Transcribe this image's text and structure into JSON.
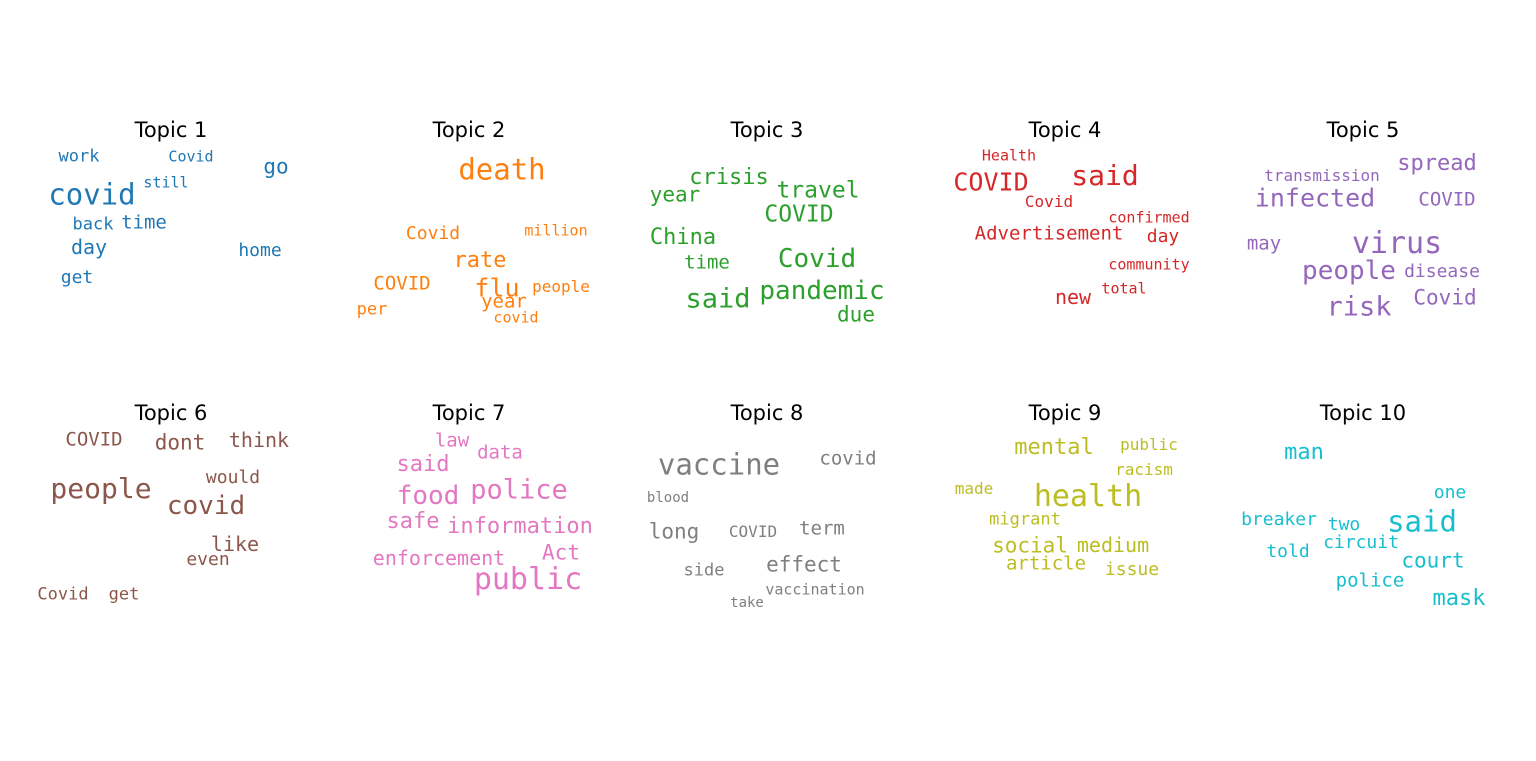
{
  "panels": [
    {
      "title": "Topic 1",
      "color": "#1f77b4",
      "words": [
        "work",
        "Covid",
        "go",
        "covid",
        "still",
        "back",
        "time",
        "day",
        "home",
        "get"
      ]
    },
    {
      "title": "Topic 2",
      "color": "#ff7f0e",
      "words": [
        "death",
        "Covid",
        "million",
        "rate",
        "COVID",
        "flu",
        "people",
        "year",
        "per",
        "covid"
      ]
    },
    {
      "title": "Topic 3",
      "color": "#2ca02c",
      "words": [
        "crisis",
        "year",
        "travel",
        "COVID",
        "China",
        "time",
        "Covid",
        "said",
        "pandemic",
        "due"
      ]
    },
    {
      "title": "Topic 4",
      "color": "#d62728",
      "words": [
        "Health",
        "COVID",
        "said",
        "Covid",
        "confirmed",
        "Advertisement",
        "day",
        "community",
        "new",
        "total"
      ]
    },
    {
      "title": "Topic 5",
      "color": "#9467bd",
      "words": [
        "transmission",
        "spread",
        "infected",
        "COVID",
        "may",
        "virus",
        "people",
        "disease",
        "Covid",
        "risk"
      ]
    },
    {
      "title": "Topic 6",
      "color": "#8c564b",
      "words": [
        "COVID",
        "dont",
        "think",
        "would",
        "people",
        "covid",
        "like",
        "even",
        "Covid",
        "get"
      ]
    },
    {
      "title": "Topic 7",
      "color": "#e377c2",
      "words": [
        "law",
        "data",
        "said",
        "food",
        "police",
        "safe",
        "information",
        "enforcement",
        "Act",
        "public"
      ]
    },
    {
      "title": "Topic 8",
      "color": "#7f7f7f",
      "words": [
        "vaccine",
        "covid",
        "blood",
        "long",
        "COVID",
        "term",
        "side",
        "effect",
        "vaccination",
        "take"
      ]
    },
    {
      "title": "Topic 9",
      "color": "#bcbd22",
      "words": [
        "mental",
        "public",
        "racism",
        "made",
        "health",
        "migrant",
        "social",
        "medium",
        "article",
        "issue"
      ]
    },
    {
      "title": "Topic 10",
      "color": "#17becf",
      "words": [
        "man",
        "one",
        "breaker",
        "two",
        "said",
        "circuit",
        "told",
        "court",
        "police",
        "mask"
      ]
    }
  ]
}
